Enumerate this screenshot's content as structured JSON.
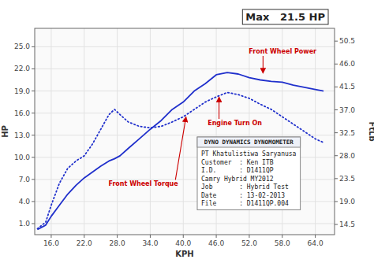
{
  "chart_data": {
    "type": "line",
    "title": "Max   21.5 HP",
    "x_label": "KPH",
    "y_label": "HP",
    "y2_label": "FtLb",
    "x": [
      13.5,
      15.0,
      16.0,
      17.5,
      19.0,
      20.5,
      22.0,
      23.5,
      25.0,
      26.5,
      27.5,
      28.5,
      30.0,
      32.0,
      34.0,
      36.0,
      38.0,
      40.0,
      42.0,
      44.0,
      46.0,
      48.0,
      50.0,
      52.0,
      54.0,
      56.0,
      58.0,
      60.0,
      62.0,
      64.0,
      65.5
    ],
    "series": [
      {
        "color": "#2030cc",
        "line_style": "dotted",
        "values": [
          0.3,
          1.2,
          3.5,
          6.5,
          8.5,
          9.5,
          10.2,
          11.8,
          13.8,
          15.8,
          16.5,
          15.8,
          14.8,
          14.2,
          14.0,
          14.2,
          14.8,
          15.5,
          16.5,
          17.5,
          18.2,
          18.8,
          18.5,
          18.0,
          17.2,
          16.5,
          15.5,
          14.5,
          13.5,
          12.5,
          12.0
        ]
      },
      {
        "color": "#2030cc",
        "line_style": "solid",
        "values": [
          0.2,
          0.8,
          2.0,
          3.5,
          5.0,
          6.2,
          7.2,
          8.0,
          8.8,
          9.5,
          9.8,
          10.2,
          11.2,
          12.5,
          13.8,
          15.0,
          16.5,
          17.5,
          19.0,
          20.0,
          21.2,
          21.5,
          21.3,
          20.8,
          20.5,
          20.3,
          20.2,
          19.8,
          19.5,
          19.2,
          19.0
        ]
      }
    ],
    "xlim": [
      13.0,
      67.5
    ],
    "ylim": [
      -0.5,
      27.5
    ],
    "y2lim": [
      12.5,
      53.0
    ],
    "xticks": [
      {
        "value": 16.0,
        "label": "16.0"
      },
      {
        "value": 22.0,
        "label": "22.0"
      },
      {
        "value": 28.0,
        "label": "28.0"
      },
      {
        "value": 34.0,
        "label": "34.0"
      },
      {
        "value": 40.0,
        "label": "40.0"
      },
      {
        "value": 46.0,
        "label": "46.0"
      },
      {
        "value": 52.0,
        "label": "52.0"
      },
      {
        "value": 58.0,
        "label": "58.0"
      },
      {
        "value": 64.0,
        "label": "64.0"
      }
    ],
    "yticks": [
      {
        "value": 1.0,
        "label": "1.0"
      },
      {
        "value": 4.0,
        "label": "4.0"
      },
      {
        "value": 7.0,
        "label": "7.0"
      },
      {
        "value": 10.0,
        "label": "10.0"
      },
      {
        "value": 13.0,
        "label": "13.0"
      },
      {
        "value": 16.0,
        "label": "16.0"
      },
      {
        "value": 19.0,
        "label": "19.0"
      },
      {
        "value": 22.0,
        "label": "22.0"
      },
      {
        "value": 25.0,
        "label": "25.0"
      }
    ],
    "y2ticks": [
      14.5,
      {
        "value": 19.0,
        "label": "19.0"
      },
      23.5,
      {
        "value": 28.0,
        "label": "28.0"
      },
      32.5,
      {
        "value": 37.0,
        "label": "37.0"
      },
      41.5,
      {
        "value": 46.0,
        "label": "46.0"
      },
      50.5
    ],
    "grid": true,
    "annotations": [
      {
        "text": "Front Wheel Torque",
        "x": 40.5,
        "y": 15.5,
        "color": "#cc0000"
      },
      {
        "text": "Front Wheel Power",
        "x": 54.5,
        "y": 21.4,
        "color": "#cc0000"
      },
      {
        "text": "Engine Turn On",
        "x": 46.5,
        "y": 18.2,
        "color": "#cc0000"
      }
    ],
    "info_box": {
      "title": "DYNO DYNAMICS DYNOMOMETER",
      "lines": [
        "PT Khatulistiwa Saryanusa",
        "Customer  : Ken ITB",
        "I.D.      : D1411QP",
        "Camry Hybrid MY2012",
        "Job       : Hybrid Test",
        "Date      : 13-02-2013",
        "File      : D1411QP.004"
      ]
    }
  }
}
